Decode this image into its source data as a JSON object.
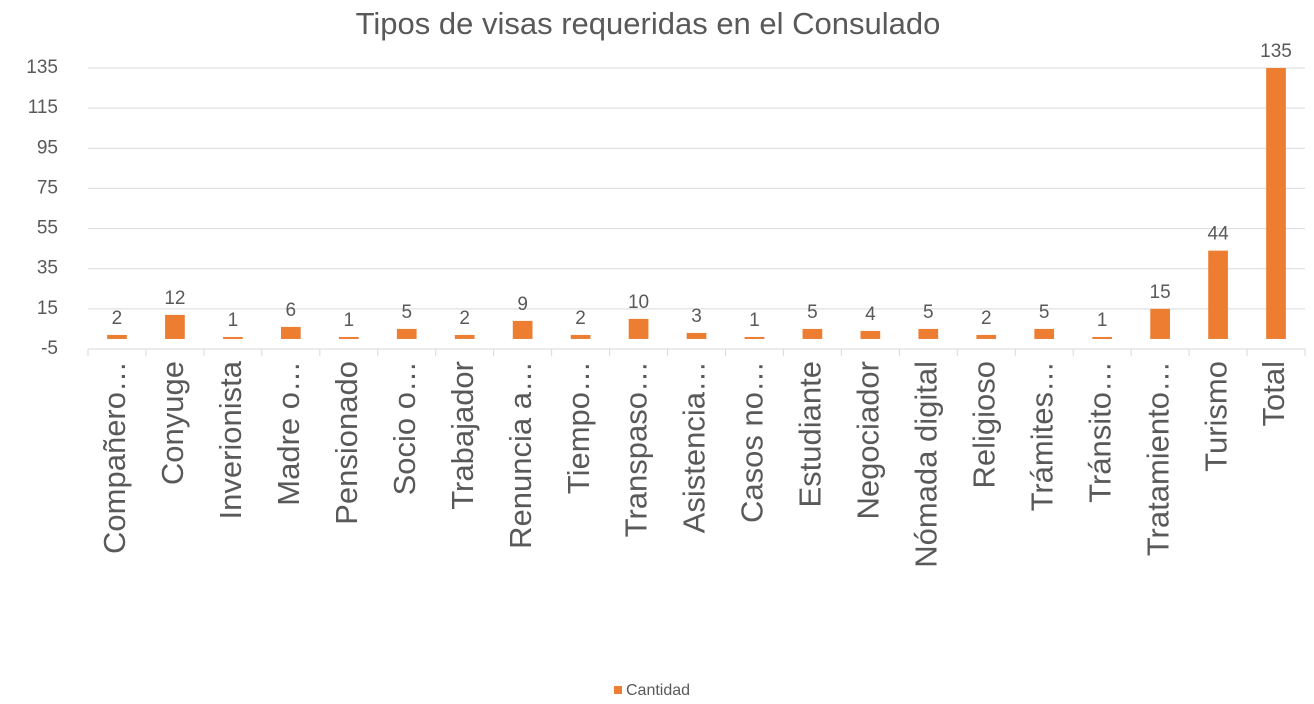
{
  "chart_data": {
    "type": "bar",
    "title": "Tipos de visas requeridas en el Consulado",
    "categories": [
      "Compañero…",
      "Conyuge",
      "Inverionista",
      "Madre o…",
      "Pensionado",
      "Socio o…",
      "Trabajador",
      "Renuncia a…",
      "Tiempo…",
      "Transpaso…",
      "Asistencia…",
      "Casos no…",
      "Estudiante",
      "Negociador",
      "Nómada digital",
      "Religioso",
      "Trámites…",
      "Tránsito…",
      "Tratamiento…",
      "Turismo",
      "Total"
    ],
    "series": [
      {
        "name": "Cantidad",
        "color": "#ed7d31",
        "values": [
          2,
          12,
          1,
          6,
          1,
          5,
          2,
          9,
          2,
          10,
          3,
          1,
          5,
          4,
          5,
          2,
          5,
          1,
          15,
          44,
          135
        ]
      }
    ],
    "ylim": [
      -5,
      135
    ],
    "yticks": [
      -5,
      15,
      35,
      55,
      75,
      95,
      115,
      135
    ],
    "grid": true,
    "legend": "bottom"
  }
}
